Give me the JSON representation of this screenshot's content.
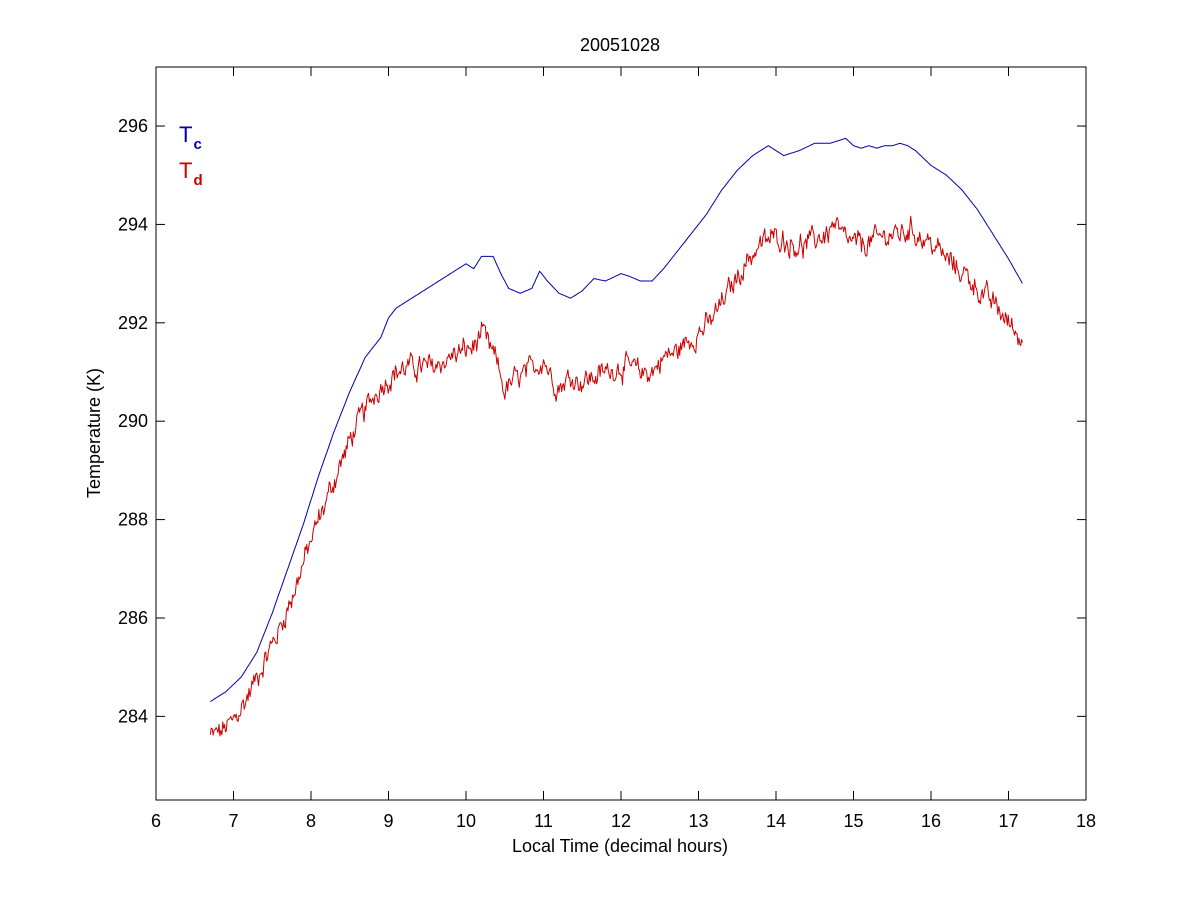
{
  "chart_data": {
    "type": "line",
    "title": "20051028",
    "xlabel": "Local Time (decimal hours)",
    "ylabel": "Temperature (K)",
    "xlim": [
      6,
      18
    ],
    "ylim": [
      282.3,
      297.2
    ],
    "xticks": [
      6,
      7,
      8,
      9,
      10,
      11,
      12,
      13,
      14,
      15,
      16,
      17,
      18
    ],
    "yticks": [
      284,
      286,
      288,
      290,
      292,
      294,
      296
    ],
    "xtick_labels": [
      "6",
      "7",
      "8",
      "9",
      "10",
      "11",
      "12",
      "13",
      "14",
      "15",
      "16",
      "17",
      "18"
    ],
    "ytick_labels": [
      "284",
      "286",
      "288",
      "290",
      "292",
      "294",
      "296"
    ],
    "grid": false,
    "legend_position": "top-left",
    "series": [
      {
        "name": "Tc",
        "legend": {
          "main": "T",
          "sub": "c"
        },
        "color": "#0000aa",
        "noise": 0,
        "x": [
          6.7,
          6.9,
          7.1,
          7.3,
          7.5,
          7.7,
          7.9,
          8.1,
          8.3,
          8.5,
          8.7,
          8.9,
          9.0,
          9.1,
          9.2,
          9.4,
          9.6,
          9.8,
          10.0,
          10.1,
          10.2,
          10.35,
          10.45,
          10.55,
          10.7,
          10.85,
          10.95,
          11.05,
          11.2,
          11.35,
          11.5,
          11.65,
          11.8,
          12.0,
          12.1,
          12.25,
          12.4,
          12.55,
          12.7,
          12.9,
          13.1,
          13.3,
          13.5,
          13.7,
          13.9,
          14.1,
          14.3,
          14.5,
          14.7,
          14.8,
          14.9,
          15.0,
          15.1,
          15.2,
          15.3,
          15.4,
          15.5,
          15.6,
          15.7,
          15.8,
          16.0,
          16.2,
          16.4,
          16.6,
          16.8,
          17.0,
          17.18
        ],
        "y": [
          284.3,
          284.5,
          284.8,
          285.3,
          286.1,
          287.0,
          287.9,
          288.9,
          289.8,
          290.6,
          291.3,
          291.7,
          292.1,
          292.3,
          292.4,
          292.6,
          292.8,
          293.0,
          293.2,
          293.1,
          293.35,
          293.35,
          293.0,
          292.7,
          292.6,
          292.7,
          293.05,
          292.85,
          292.6,
          292.5,
          292.65,
          292.9,
          292.85,
          293.0,
          292.95,
          292.85,
          292.85,
          293.1,
          293.4,
          293.8,
          294.2,
          294.7,
          295.1,
          295.4,
          295.6,
          295.4,
          295.5,
          295.65,
          295.65,
          295.7,
          295.75,
          295.6,
          295.55,
          295.6,
          295.55,
          295.6,
          295.6,
          295.65,
          295.6,
          295.5,
          295.2,
          295.0,
          294.7,
          294.3,
          293.8,
          293.3,
          292.8
        ]
      },
      {
        "name": "Td",
        "legend": {
          "main": "T",
          "sub": "d"
        },
        "color": "#cc0000",
        "noise": 0.18,
        "x": [
          6.7,
          6.85,
          7.0,
          7.15,
          7.3,
          7.45,
          7.6,
          7.75,
          7.9,
          8.05,
          8.2,
          8.35,
          8.5,
          8.65,
          8.8,
          8.95,
          9.1,
          9.25,
          9.4,
          9.55,
          9.7,
          9.85,
          10.0,
          10.1,
          10.2,
          10.3,
          10.4,
          10.5,
          10.6,
          10.7,
          10.8,
          10.9,
          11.0,
          11.1,
          11.2,
          11.35,
          11.5,
          11.65,
          11.8,
          11.95,
          12.1,
          12.25,
          12.4,
          12.55,
          12.7,
          12.85,
          13.0,
          13.15,
          13.3,
          13.45,
          13.6,
          13.75,
          13.9,
          14.05,
          14.2,
          14.35,
          14.5,
          14.65,
          14.75,
          14.85,
          15.0,
          15.15,
          15.3,
          15.45,
          15.6,
          15.75,
          15.9,
          16.05,
          16.2,
          16.35,
          16.5,
          16.65,
          16.8,
          16.95,
          17.1,
          17.18
        ],
        "y": [
          283.6,
          283.7,
          283.9,
          284.3,
          284.8,
          285.3,
          285.8,
          286.4,
          287.1,
          287.8,
          288.4,
          289.0,
          289.6,
          290.1,
          290.5,
          290.8,
          291.0,
          291.1,
          291.1,
          291.1,
          291.2,
          291.35,
          291.45,
          291.5,
          291.8,
          291.5,
          291.2,
          290.6,
          290.8,
          290.9,
          291.0,
          291.1,
          291.3,
          290.9,
          290.7,
          290.9,
          290.8,
          290.9,
          291.0,
          291.1,
          291.1,
          291.0,
          291.0,
          291.3,
          291.4,
          291.6,
          291.8,
          292.0,
          292.4,
          292.8,
          293.2,
          293.5,
          293.7,
          293.75,
          293.6,
          293.55,
          293.7,
          293.8,
          294.0,
          293.75,
          293.6,
          293.6,
          293.7,
          293.8,
          293.8,
          293.9,
          293.7,
          293.55,
          293.3,
          293.1,
          292.9,
          292.6,
          292.4,
          292.1,
          291.8,
          291.6
        ]
      }
    ]
  }
}
